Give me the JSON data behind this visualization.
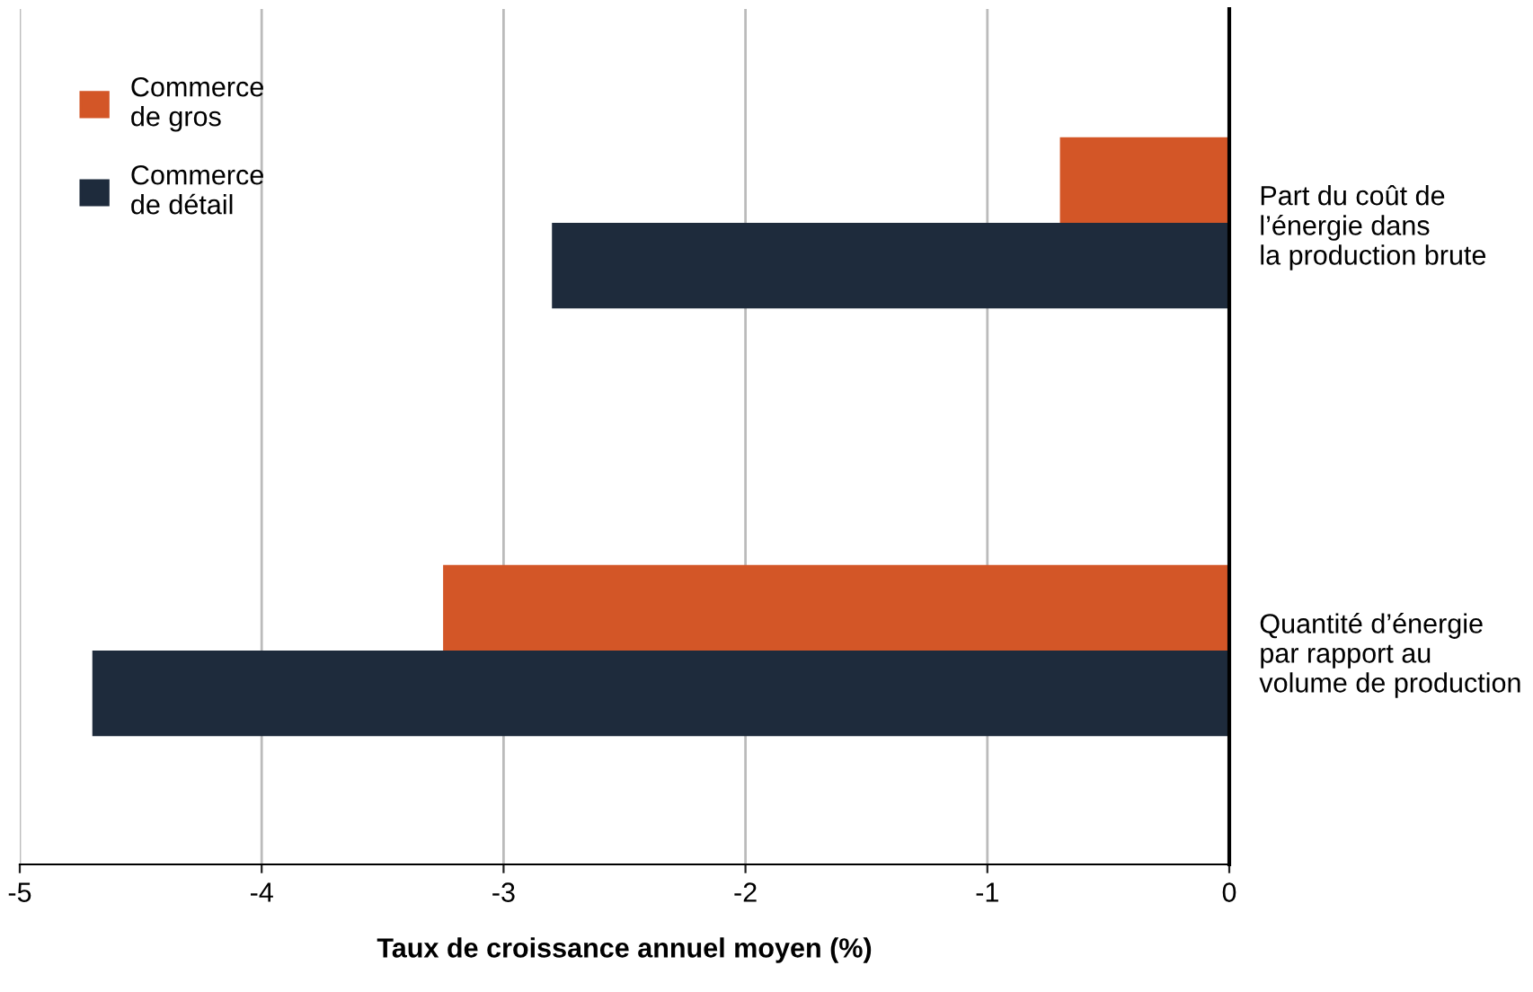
{
  "chart_data": {
    "type": "bar",
    "orientation": "horizontal",
    "xlabel": "Taux de croissance annuel moyen (%)",
    "categories": [
      "Part du coût de\nl’énergie dans\nla production brute",
      "Quantité d’énergie\npar rapport au\nvolume de production"
    ],
    "series": [
      {
        "name": "Commerce\nde gros",
        "color": "#d35627",
        "values": [
          -0.7,
          -3.25
        ]
      },
      {
        "name": "Commerce\nde détail",
        "color": "#1e2b3c",
        "values": [
          -2.8,
          -4.7
        ]
      }
    ],
    "xlim": [
      -5,
      0
    ],
    "xticks": [
      {
        "value": -5,
        "label": "-5"
      },
      {
        "value": -4,
        "label": "-4"
      },
      {
        "value": -3,
        "label": "-3"
      },
      {
        "value": -2,
        "label": "-2"
      },
      {
        "value": -1,
        "label": "-1"
      },
      0
    ],
    "grid": "x",
    "legend": "top left"
  }
}
